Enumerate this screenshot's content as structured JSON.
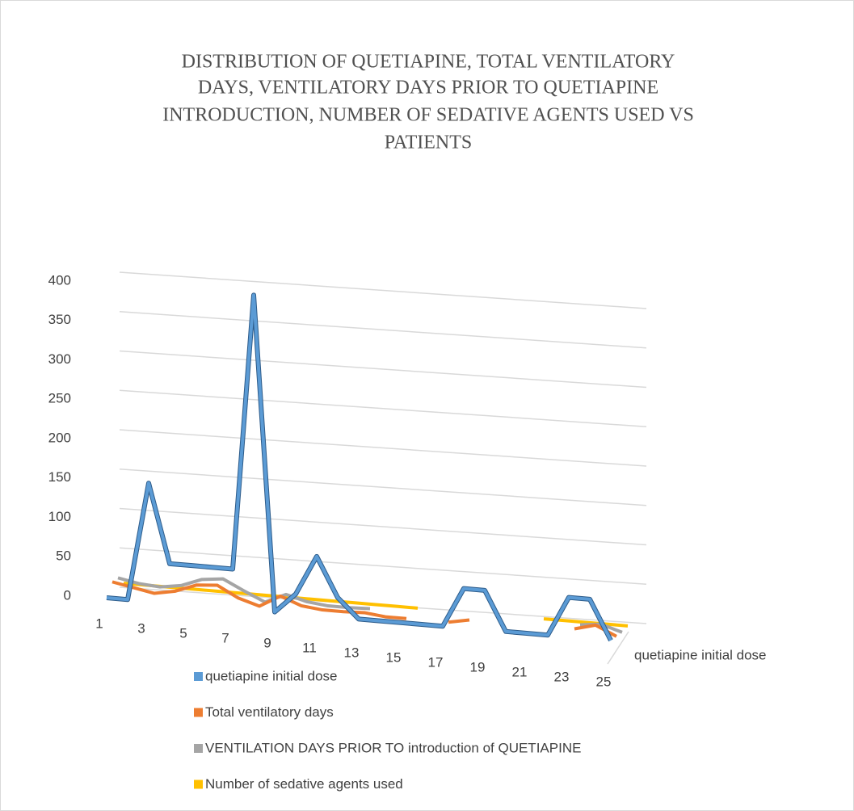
{
  "chart_data": {
    "type": "line",
    "title": [
      "DISTRIBUTION  OF QUETIAPINE, TOTAL VENTILATORY",
      "DAYS, VENTILATORY DAYS PRIOR TO QUETIAPINE",
      "INTRODUCTION, NUMBER OF SEDATIVE AGENTS USED VS",
      "PATIENTS"
    ],
    "categories": [
      1,
      null,
      3,
      null,
      5,
      null,
      7,
      null,
      9,
      null,
      11,
      null,
      13,
      null,
      15,
      null,
      17,
      null,
      19,
      null,
      21,
      null,
      23,
      null,
      25
    ],
    "depth_label": "quetiapine initial dose",
    "ylim": [
      0,
      400
    ],
    "yticks": [
      0,
      50,
      100,
      150,
      200,
      250,
      300,
      350,
      400
    ],
    "grid": true,
    "series": [
      {
        "name": "quetiapine initial dose",
        "color": "#5b9bd5",
        "values": [
          0,
          0,
          150,
          50,
          50,
          50,
          50,
          400,
          0,
          25,
          75,
          25,
          0,
          0,
          0,
          0,
          0,
          50,
          50,
          0,
          0,
          0,
          50,
          50,
          0
        ]
      },
      {
        "name": "Total ventilatory days",
        "color": "#ed7d31",
        "values": [
          15,
          10,
          5,
          10,
          20,
          22,
          8,
          0,
          15,
          5,
          2,
          2,
          3,
          0,
          0,
          null,
          0,
          5,
          null,
          null,
          5,
          null,
          5,
          12,
          0
        ]
      },
      {
        "name": "VENTILATION DAYS PRIOR TO introduction of QUETIAPINE",
        "color": "#a5a5a5",
        "values": [
          15,
          10,
          8,
          12,
          22,
          25,
          12,
          0,
          12,
          5,
          2,
          2,
          3,
          null,
          null,
          null,
          null,
          5,
          null,
          null,
          null,
          null,
          5,
          8,
          0
        ]
      },
      {
        "name": "Number of sedative agents used",
        "color": "#ffc000",
        "values": [
          3,
          3,
          3,
          3,
          3,
          3,
          3,
          3,
          3,
          3,
          3,
          3,
          3,
          3,
          3,
          null,
          null,
          3,
          null,
          null,
          3,
          3,
          3,
          3,
          3
        ]
      }
    ]
  }
}
